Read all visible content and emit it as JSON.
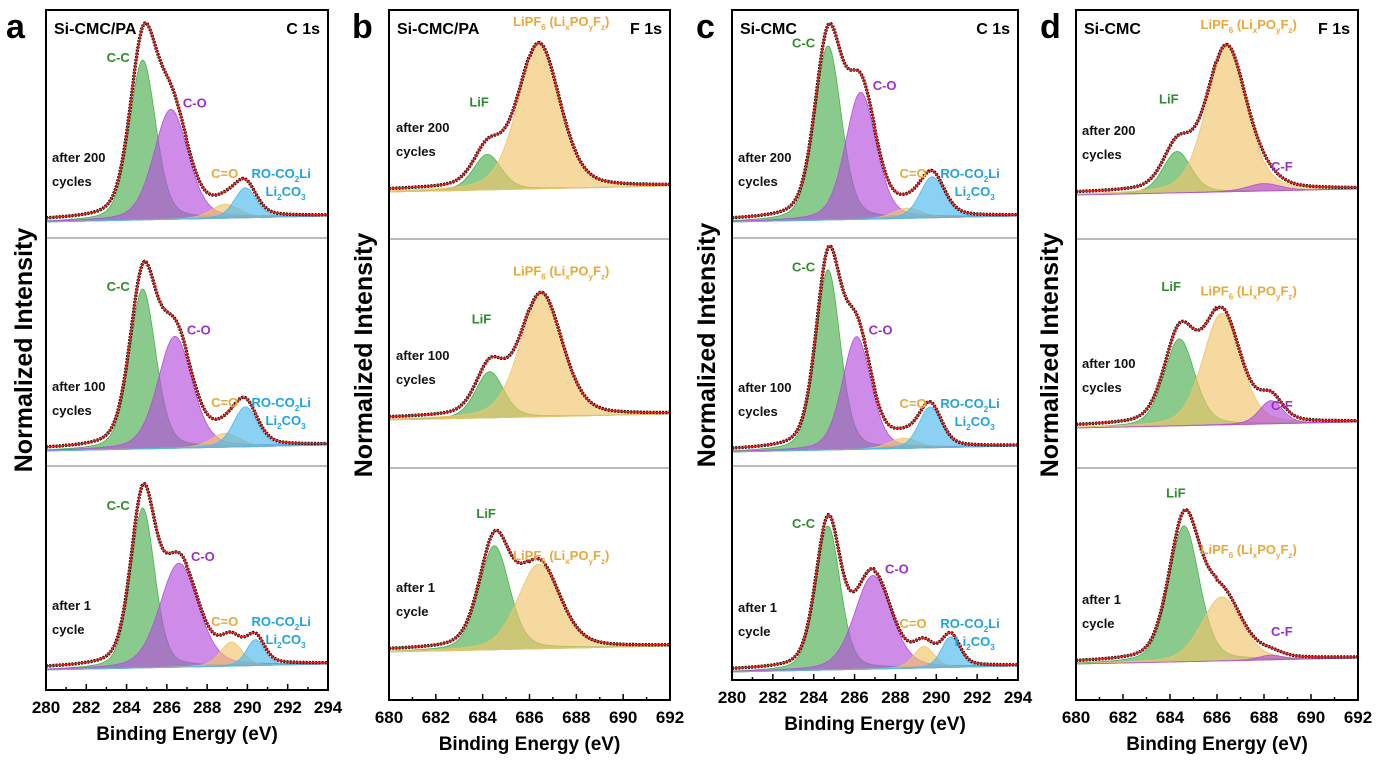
{
  "figure": {
    "ylabel": "Normalized Intensity",
    "xlabel": "Binding Energy (eV)"
  },
  "colors": {
    "green": "#2e8b2e",
    "green_fill": "#4caf50",
    "purple": "#9b30c8",
    "purple_fill": "#b44fdc",
    "orange": "#e8a93a",
    "orange_fill": "#f0c46a",
    "blue": "#1fa3e0",
    "blue_fill": "#4cb8ee",
    "fit": "#e0201b",
    "data": "#111111",
    "label_text": "#111111"
  },
  "chart_data": [
    {
      "panel": "a",
      "type": "line",
      "title_left": "Si-CMC/PA",
      "title_right": "C 1s",
      "xlabel": "Binding Energy (eV)",
      "ylabel": "Normalized Intensity",
      "xlim": [
        280,
        294
      ],
      "xticks": [
        "280",
        "282",
        "284",
        "286",
        "288",
        "290",
        "292",
        "294"
      ],
      "stacks": [
        {
          "label_line1": "after 200",
          "label_line2": "cycles",
          "components": [
            {
              "name": "C-C",
              "center": 284.8,
              "height": 0.8,
              "width": 0.65,
              "color": "green"
            },
            {
              "name": "C-O",
              "center": 286.2,
              "height": 0.55,
              "width": 0.85,
              "color": "purple"
            },
            {
              "name": "C=O",
              "center": 288.9,
              "height": 0.07,
              "width": 0.7,
              "color": "orange"
            },
            {
              "name": "RO-CO2Li / Li2CO3",
              "center": 289.9,
              "height": 0.15,
              "width": 0.55,
              "color": "blue"
            }
          ]
        },
        {
          "label_line1": "after 100",
          "label_line2": "cycles",
          "components": [
            {
              "name": "C-C",
              "center": 284.8,
              "height": 0.8,
              "width": 0.65,
              "color": "green"
            },
            {
              "name": "C-O",
              "center": 286.4,
              "height": 0.56,
              "width": 0.85,
              "color": "purple"
            },
            {
              "name": "C=O",
              "center": 288.9,
              "height": 0.07,
              "width": 0.7,
              "color": "orange"
            },
            {
              "name": "RO-CO2Li / Li2CO3",
              "center": 289.9,
              "height": 0.2,
              "width": 0.6,
              "color": "blue"
            }
          ]
        },
        {
          "label_line1": "after 1",
          "label_line2": "cycle",
          "components": [
            {
              "name": "C-C",
              "center": 284.8,
              "height": 0.8,
              "width": 0.6,
              "color": "green"
            },
            {
              "name": "C-O",
              "center": 286.6,
              "height": 0.52,
              "width": 0.95,
              "color": "purple"
            },
            {
              "name": "C=O",
              "center": 289.2,
              "height": 0.12,
              "width": 0.55,
              "color": "orange"
            },
            {
              "name": "RO-CO2Li / Li2CO3",
              "center": 290.4,
              "height": 0.13,
              "width": 0.45,
              "color": "blue"
            }
          ]
        }
      ],
      "annotations": [
        {
          "stack": 0,
          "text": "C-C",
          "color": "green"
        },
        {
          "stack": 0,
          "text": "C-O",
          "color": "purple"
        },
        {
          "stack": 0,
          "text": "C=O",
          "color": "orange"
        },
        {
          "stack": 0,
          "text": "RO-CO₂Li",
          "color": "blue"
        },
        {
          "stack": 0,
          "text": "Li₂CO₃",
          "color": "blue"
        }
      ]
    },
    {
      "panel": "b",
      "type": "line",
      "title_left": "Si-CMC/PA",
      "title_right": "F 1s",
      "xlabel": "Binding Energy (eV)",
      "ylabel": "Normalized Intensity",
      "xlim": [
        680,
        692
      ],
      "xticks": [
        "680",
        "682",
        "684",
        "686",
        "688",
        "690",
        "692"
      ],
      "stacks": [
        {
          "label_line1": "after 200",
          "label_line2": "cycles",
          "components": [
            {
              "name": "LiF",
              "center": 684.2,
              "height": 0.24,
              "width": 0.6,
              "color": "green"
            },
            {
              "name": "LiPF6 (LixPOyF2)",
              "center": 686.4,
              "height": 0.98,
              "width": 0.9,
              "color": "orange"
            }
          ]
        },
        {
          "label_line1": "after 100",
          "label_line2": "cycles",
          "components": [
            {
              "name": "LiF",
              "center": 684.3,
              "height": 0.33,
              "width": 0.6,
              "color": "green"
            },
            {
              "name": "LiPF6 (LixPOyF2)",
              "center": 686.5,
              "height": 0.88,
              "width": 0.9,
              "color": "orange"
            }
          ]
        },
        {
          "label_line1": "after 1",
          "label_line2": "cycle",
          "components": [
            {
              "name": "LiF",
              "center": 684.5,
              "height": 0.8,
              "width": 0.65,
              "color": "green"
            },
            {
              "name": "LiPF6 (LixPOyF2)",
              "center": 686.4,
              "height": 0.65,
              "width": 0.9,
              "color": "orange"
            }
          ]
        }
      ]
    },
    {
      "panel": "c",
      "type": "line",
      "title_left": "Si-CMC",
      "title_right": "C 1s",
      "xlabel": "Binding Energy (eV)",
      "ylabel": "Normalized Intensity",
      "xlim": [
        280,
        294
      ],
      "xticks": [
        "280",
        "282",
        "284",
        "286",
        "288",
        "290",
        "292",
        "294"
      ],
      "stacks": [
        {
          "label_line1": "after 200",
          "label_line2": "cycles",
          "components": [
            {
              "name": "C-C",
              "center": 284.7,
              "height": 0.85,
              "width": 0.65,
              "color": "green"
            },
            {
              "name": "C-O",
              "center": 286.3,
              "height": 0.62,
              "width": 0.75,
              "color": "purple"
            },
            {
              "name": "C=O",
              "center": 288.6,
              "height": 0.05,
              "width": 0.7,
              "color": "orange"
            },
            {
              "name": "RO-CO2Li / Li2CO3",
              "center": 289.8,
              "height": 0.2,
              "width": 0.6,
              "color": "blue"
            }
          ]
        },
        {
          "label_line1": "after 100",
          "label_line2": "cycles",
          "components": [
            {
              "name": "C-C",
              "center": 284.7,
              "height": 0.88,
              "width": 0.6,
              "color": "green"
            },
            {
              "name": "C-O",
              "center": 286.1,
              "height": 0.55,
              "width": 0.7,
              "color": "purple"
            },
            {
              "name": "C=O",
              "center": 288.4,
              "height": 0.05,
              "width": 0.7,
              "color": "orange"
            },
            {
              "name": "RO-CO2Li / Li2CO3",
              "center": 289.7,
              "height": 0.2,
              "width": 0.55,
              "color": "blue"
            }
          ]
        },
        {
          "label_line1": "after 1",
          "label_line2": "cycle",
          "components": [
            {
              "name": "C-C",
              "center": 284.7,
              "height": 0.8,
              "width": 0.6,
              "color": "green"
            },
            {
              "name": "C-O",
              "center": 286.9,
              "height": 0.52,
              "width": 0.9,
              "color": "purple"
            },
            {
              "name": "C=O",
              "center": 289.4,
              "height": 0.12,
              "width": 0.5,
              "color": "orange"
            },
            {
              "name": "RO-CO2Li / Li2CO3",
              "center": 290.7,
              "height": 0.17,
              "width": 0.45,
              "color": "blue"
            }
          ]
        }
      ]
    },
    {
      "panel": "d",
      "type": "line",
      "title_left": "Si-CMC",
      "title_right": "F 1s",
      "xlabel": "Binding Energy (eV)",
      "ylabel": "Normalized Intensity",
      "xlim": [
        680,
        692
      ],
      "xticks": [
        "680",
        "682",
        "684",
        "686",
        "688",
        "690",
        "692"
      ],
      "stacks": [
        {
          "label_line1": "after 200",
          "label_line2": "cycles",
          "components": [
            {
              "name": "LiF",
              "center": 684.3,
              "height": 0.28,
              "width": 0.6,
              "color": "green"
            },
            {
              "name": "LiPF6 (LixPOyF2)",
              "center": 686.4,
              "height": 0.98,
              "width": 0.85,
              "color": "orange"
            },
            {
              "name": "C-F",
              "center": 688.0,
              "height": 0.05,
              "width": 0.7,
              "color": "purple"
            }
          ]
        },
        {
          "label_line1": "after 100",
          "label_line2": "cycles",
          "components": [
            {
              "name": "LiF",
              "center": 684.4,
              "height": 0.6,
              "width": 0.65,
              "color": "green"
            },
            {
              "name": "LiPF6 (LixPOyF2)",
              "center": 686.2,
              "height": 0.77,
              "width": 0.8,
              "color": "orange"
            },
            {
              "name": "C-F",
              "center": 688.3,
              "height": 0.16,
              "width": 0.5,
              "color": "purple"
            }
          ]
        },
        {
          "label_line1": "after 1",
          "label_line2": "cycle",
          "components": [
            {
              "name": "LiF",
              "center": 684.6,
              "height": 0.85,
              "width": 0.65,
              "color": "green"
            },
            {
              "name": "LiPF6 (LixPOyF2)",
              "center": 686.2,
              "height": 0.4,
              "width": 0.85,
              "color": "orange"
            },
            {
              "name": "C-F",
              "center": 688.3,
              "height": 0.03,
              "width": 0.5,
              "color": "purple"
            }
          ]
        }
      ]
    }
  ]
}
